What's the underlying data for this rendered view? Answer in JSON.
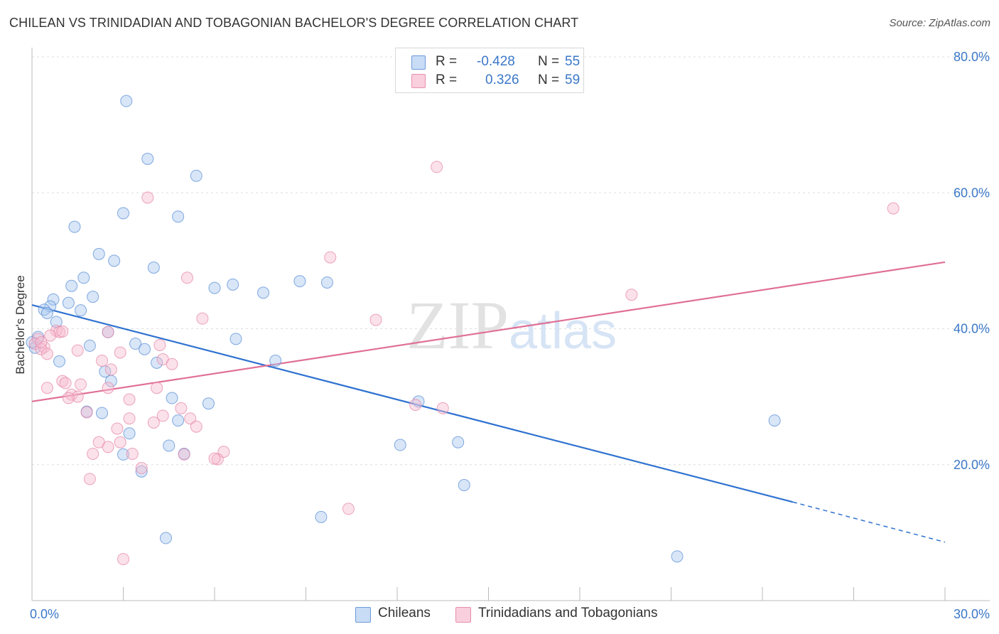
{
  "chart_data": {
    "type": "scatter",
    "title": "CHILEAN VS TRINIDADIAN AND TOBAGONIAN BACHELOR'S DEGREE CORRELATION CHART",
    "source": "Source: ZipAtlas.com",
    "ylabel": "Bachelor's Degree",
    "xlabel": "",
    "xlim": [
      0,
      30
    ],
    "ylim": [
      0,
      80
    ],
    "x_tick_labels": [
      {
        "value": 0,
        "label": "0.0%"
      },
      {
        "value": 30,
        "label": "30.0%"
      }
    ],
    "y_tick_labels": [
      {
        "value": 20,
        "label": "20.0%"
      },
      {
        "value": 40,
        "label": "40.0%"
      },
      {
        "value": 60,
        "label": "60.0%"
      },
      {
        "value": 80,
        "label": "80.0%"
      }
    ],
    "watermark": "ZIPatlas",
    "legend": [
      {
        "name": "Chileans",
        "r_label": "R = ",
        "r_value": "-0.428",
        "n_label": "N = ",
        "n_value": "55",
        "color": "#a9c8f0",
        "edge": "#5b8fd6"
      },
      {
        "name": "Trinidadians and Tobagonians",
        "r_label": "R = ",
        "r_value": "0.326",
        "n_label": "N = ",
        "n_value": "59",
        "color": "#f7bcd0",
        "edge": "#e588a8"
      }
    ],
    "series": [
      {
        "name": "Chileans",
        "color": "#a9c8f0",
        "edge": "#5b8fd6",
        "trend": {
          "x0": 0,
          "y0": 43.5,
          "x1": 25.0,
          "y1": 14.5,
          "dash_to_x": 30,
          "dash_to_y": 8.6,
          "color": "#2f72d0"
        },
        "points": [
          [
            3.1,
            73.5
          ],
          [
            3.8,
            65.0
          ],
          [
            5.4,
            62.5
          ],
          [
            3.0,
            57.0
          ],
          [
            4.8,
            56.5
          ],
          [
            1.4,
            55.0
          ],
          [
            2.2,
            51.0
          ],
          [
            2.7,
            50.0
          ],
          [
            4.0,
            49.0
          ],
          [
            1.7,
            47.5
          ],
          [
            1.3,
            46.3
          ],
          [
            6.0,
            46.0
          ],
          [
            6.6,
            46.5
          ],
          [
            7.6,
            45.3
          ],
          [
            8.8,
            47.0
          ],
          [
            9.7,
            46.8
          ],
          [
            2.0,
            44.7
          ],
          [
            0.7,
            44.3
          ],
          [
            1.2,
            43.8
          ],
          [
            0.6,
            43.3
          ],
          [
            0.4,
            42.8
          ],
          [
            1.6,
            42.7
          ],
          [
            0.5,
            42.3
          ],
          [
            0.8,
            41.0
          ],
          [
            2.5,
            39.5
          ],
          [
            6.7,
            38.5
          ],
          [
            1.9,
            37.5
          ],
          [
            3.4,
            37.8
          ],
          [
            3.7,
            37.0
          ],
          [
            0.1,
            37.2
          ],
          [
            0.9,
            35.2
          ],
          [
            4.1,
            35.0
          ],
          [
            8.0,
            35.3
          ],
          [
            2.4,
            33.7
          ],
          [
            2.6,
            32.3
          ],
          [
            4.6,
            29.8
          ],
          [
            5.8,
            29.0
          ],
          [
            12.7,
            29.3
          ],
          [
            1.8,
            27.8
          ],
          [
            2.3,
            27.6
          ],
          [
            4.8,
            26.5
          ],
          [
            3.2,
            24.6
          ],
          [
            4.5,
            22.8
          ],
          [
            12.1,
            22.9
          ],
          [
            14.0,
            23.3
          ],
          [
            3.0,
            21.5
          ],
          [
            5.0,
            21.6
          ],
          [
            3.6,
            19.0
          ],
          [
            14.2,
            17.0
          ],
          [
            9.5,
            12.3
          ],
          [
            4.4,
            9.2
          ],
          [
            21.2,
            6.5
          ],
          [
            24.4,
            26.5
          ],
          [
            0.2,
            38.8
          ],
          [
            0.0,
            38.0
          ]
        ]
      },
      {
        "name": "Trinidadians and Tobagonians",
        "color": "#f7bcd0",
        "edge": "#e588a8",
        "trend": {
          "x0": 0,
          "y0": 29.3,
          "x1": 30,
          "y1": 49.8,
          "color": "#e06e96"
        },
        "points": [
          [
            13.3,
            63.8
          ],
          [
            3.8,
            59.3
          ],
          [
            28.3,
            57.7
          ],
          [
            9.8,
            50.5
          ],
          [
            5.1,
            47.5
          ],
          [
            19.7,
            45.0
          ],
          [
            5.6,
            41.5
          ],
          [
            11.3,
            41.3
          ],
          [
            0.8,
            39.7
          ],
          [
            0.9,
            39.5
          ],
          [
            1.0,
            39.6
          ],
          [
            2.5,
            39.5
          ],
          [
            0.6,
            39.0
          ],
          [
            0.2,
            38.5
          ],
          [
            0.1,
            37.8
          ],
          [
            0.4,
            37.3
          ],
          [
            4.2,
            37.6
          ],
          [
            0.3,
            37.0
          ],
          [
            1.5,
            36.8
          ],
          [
            2.9,
            36.5
          ],
          [
            0.5,
            36.3
          ],
          [
            4.3,
            35.5
          ],
          [
            2.3,
            35.3
          ],
          [
            4.6,
            34.8
          ],
          [
            2.6,
            34.0
          ],
          [
            1.0,
            32.3
          ],
          [
            1.1,
            32.0
          ],
          [
            0.5,
            31.3
          ],
          [
            1.6,
            31.8
          ],
          [
            4.1,
            31.3
          ],
          [
            1.3,
            30.3
          ],
          [
            2.5,
            31.3
          ],
          [
            1.5,
            30.0
          ],
          [
            1.2,
            29.8
          ],
          [
            3.2,
            29.6
          ],
          [
            12.6,
            28.8
          ],
          [
            13.5,
            28.3
          ],
          [
            4.9,
            28.3
          ],
          [
            1.8,
            27.7
          ],
          [
            4.3,
            27.2
          ],
          [
            3.2,
            26.8
          ],
          [
            5.2,
            26.8
          ],
          [
            4.0,
            26.2
          ],
          [
            2.8,
            25.3
          ],
          [
            5.4,
            25.6
          ],
          [
            2.2,
            23.3
          ],
          [
            2.9,
            23.3
          ],
          [
            2.5,
            22.6
          ],
          [
            6.3,
            21.9
          ],
          [
            2.0,
            21.6
          ],
          [
            3.3,
            21.6
          ],
          [
            5.0,
            21.5
          ],
          [
            6.1,
            20.8
          ],
          [
            6.0,
            20.9
          ],
          [
            3.6,
            19.5
          ],
          [
            1.9,
            17.9
          ],
          [
            10.4,
            13.5
          ],
          [
            3.0,
            6.1
          ],
          [
            0.3,
            38.0
          ]
        ]
      }
    ]
  }
}
